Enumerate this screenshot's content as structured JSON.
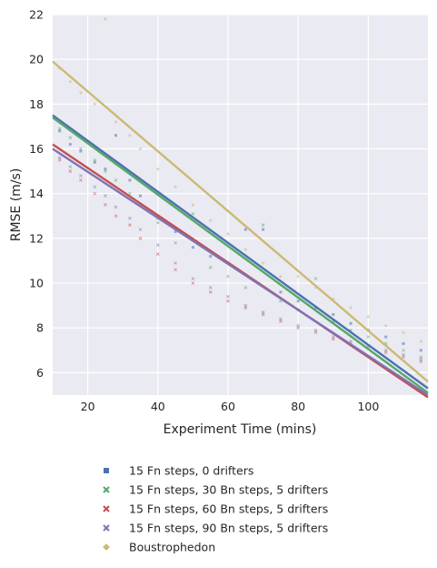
{
  "chart_data": {
    "type": "scatter",
    "xlabel": "Experiment Time (mins)",
    "ylabel": "RMSE (m/s)",
    "xlim": [
      10,
      117
    ],
    "ylim": [
      5,
      22
    ],
    "xticks": [
      20,
      40,
      60,
      80,
      100
    ],
    "yticks": [
      6,
      8,
      10,
      12,
      14,
      16,
      18,
      20,
      22
    ],
    "grid": true,
    "legend_position": "bottom",
    "series": [
      {
        "name": "15 Fn steps, 0 drifters",
        "color": "#4c72b0",
        "marker": "square",
        "regression": {
          "x": [
            10,
            117
          ],
          "y": [
            17.5,
            5.3
          ]
        },
        "points": [
          [
            12,
            16.8
          ],
          [
            15,
            16.2
          ],
          [
            18,
            15.9
          ],
          [
            22,
            15.4
          ],
          [
            25,
            15.1
          ],
          [
            28,
            16.6
          ],
          [
            32,
            14.6
          ],
          [
            35,
            13.9
          ],
          [
            40,
            12.9
          ],
          [
            45,
            12.3
          ],
          [
            50,
            11.6
          ],
          [
            55,
            11.2
          ],
          [
            60,
            10.9
          ],
          [
            65,
            12.4
          ],
          [
            70,
            12.4
          ],
          [
            75,
            9.6
          ],
          [
            80,
            9.2
          ],
          [
            85,
            8.9
          ],
          [
            90,
            8.6
          ],
          [
            95,
            8.2
          ],
          [
            100,
            7.9
          ],
          [
            105,
            7.6
          ],
          [
            110,
            7.3
          ],
          [
            115,
            7.0
          ]
        ]
      },
      {
        "name": "15 Fn steps, 30 Bn steps, 5 drifters",
        "color": "#55a868",
        "marker": "x",
        "regression": {
          "x": [
            10,
            117
          ],
          "y": [
            17.4,
            5.1
          ]
        },
        "points": [
          [
            12,
            16.9
          ],
          [
            15,
            16.5
          ],
          [
            18,
            16.0
          ],
          [
            22,
            15.5
          ],
          [
            25,
            15.0
          ],
          [
            28,
            14.6
          ],
          [
            32,
            14.0
          ],
          [
            35,
            13.5
          ],
          [
            40,
            12.7
          ],
          [
            45,
            11.8
          ],
          [
            50,
            13.1
          ],
          [
            55,
            10.7
          ],
          [
            60,
            10.3
          ],
          [
            65,
            9.8
          ],
          [
            70,
            12.6
          ],
          [
            75,
            9.2
          ],
          [
            80,
            8.8
          ],
          [
            85,
            10.2
          ],
          [
            90,
            8.3
          ],
          [
            95,
            7.9
          ],
          [
            100,
            7.6
          ],
          [
            105,
            7.3
          ],
          [
            110,
            7.0
          ],
          [
            115,
            6.7
          ]
        ]
      },
      {
        "name": "15 Fn steps, 60 Bn steps, 5 drifters",
        "color": "#c44e52",
        "marker": "x",
        "regression": {
          "x": [
            10,
            117
          ],
          "y": [
            16.2,
            4.9
          ]
        },
        "points": [
          [
            12,
            15.5
          ],
          [
            15,
            15.0
          ],
          [
            18,
            14.6
          ],
          [
            22,
            14.0
          ],
          [
            25,
            13.5
          ],
          [
            28,
            13.0
          ],
          [
            32,
            12.6
          ],
          [
            35,
            12.0
          ],
          [
            40,
            11.3
          ],
          [
            45,
            10.6
          ],
          [
            50,
            10.0
          ],
          [
            55,
            9.6
          ],
          [
            60,
            9.2
          ],
          [
            65,
            8.9
          ],
          [
            70,
            8.6
          ],
          [
            75,
            8.3
          ],
          [
            80,
            8.0
          ],
          [
            85,
            7.8
          ],
          [
            90,
            7.5
          ],
          [
            95,
            7.3
          ],
          [
            100,
            7.1
          ],
          [
            105,
            6.9
          ],
          [
            110,
            6.7
          ],
          [
            115,
            6.5
          ]
        ]
      },
      {
        "name": "15 Fn steps, 90 Bn steps, 5 drifters",
        "color": "#8172b2",
        "marker": "x",
        "regression": {
          "x": [
            10,
            117
          ],
          "y": [
            16.0,
            5.0
          ]
        },
        "points": [
          [
            12,
            15.6
          ],
          [
            15,
            15.2
          ],
          [
            18,
            14.8
          ],
          [
            22,
            14.3
          ],
          [
            25,
            13.9
          ],
          [
            28,
            13.4
          ],
          [
            32,
            12.9
          ],
          [
            35,
            12.4
          ],
          [
            40,
            11.7
          ],
          [
            45,
            10.9
          ],
          [
            50,
            10.2
          ],
          [
            55,
            9.8
          ],
          [
            60,
            9.4
          ],
          [
            65,
            9.0
          ],
          [
            70,
            8.7
          ],
          [
            75,
            8.4
          ],
          [
            80,
            8.1
          ],
          [
            85,
            7.9
          ],
          [
            90,
            7.6
          ],
          [
            95,
            7.4
          ],
          [
            100,
            7.2
          ],
          [
            105,
            7.0
          ],
          [
            110,
            6.8
          ],
          [
            115,
            6.6
          ]
        ]
      },
      {
        "name": "Boustrophedon",
        "color": "#ccb974",
        "marker": "diamond",
        "regression": {
          "x": [
            10,
            117
          ],
          "y": [
            19.9,
            5.6
          ]
        },
        "points": [
          [
            12,
            19.6
          ],
          [
            15,
            19.0
          ],
          [
            18,
            18.5
          ],
          [
            22,
            18.0
          ],
          [
            25,
            21.8
          ],
          [
            28,
            17.2
          ],
          [
            32,
            16.6
          ],
          [
            35,
            16.0
          ],
          [
            40,
            15.1
          ],
          [
            45,
            14.3
          ],
          [
            50,
            13.5
          ],
          [
            55,
            12.8
          ],
          [
            60,
            12.2
          ],
          [
            65,
            11.5
          ],
          [
            70,
            10.9
          ],
          [
            75,
            10.3
          ],
          [
            80,
            10.3
          ],
          [
            85,
            9.8
          ],
          [
            90,
            9.3
          ],
          [
            95,
            8.9
          ],
          [
            100,
            8.5
          ],
          [
            105,
            8.1
          ],
          [
            110,
            7.8
          ],
          [
            115,
            7.4
          ]
        ]
      }
    ]
  }
}
